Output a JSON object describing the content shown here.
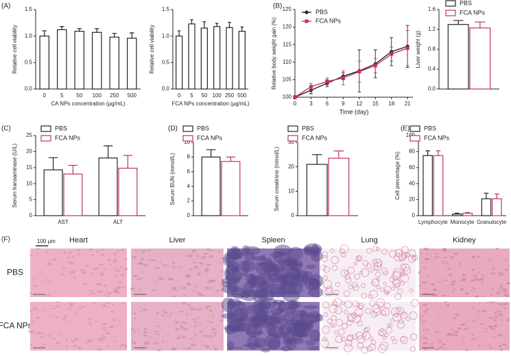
{
  "chart_data": [
    {
      "type": "bar",
      "panel": "(A)",
      "ylabel": "Relative cell viability",
      "xlabel": "CA NPs concentration (μg/mL)",
      "categories": [
        "0",
        "5",
        "50",
        "100",
        "250",
        "500"
      ],
      "series": [
        {
          "color": "#222222",
          "values": [
            1.0,
            1.12,
            1.09,
            1.07,
            0.98,
            0.96
          ],
          "errors": [
            0.1,
            0.06,
            0.05,
            0.07,
            0.07,
            0.1
          ]
        }
      ],
      "ylim": [
        0,
        1.5
      ],
      "yticks": [
        {
          "value": 0,
          "label": "0.0"
        },
        {
          "value": 0.5,
          "label": "0.5"
        },
        {
          "value": 1,
          "label": "1.0"
        },
        {
          "value": 1.5,
          "label": "1.5"
        }
      ]
    },
    {
      "type": "bar",
      "ylabel": "Relative cell viability",
      "xlabel": "FCA NPs concentration (μg/mL)",
      "categories": [
        "0",
        "5",
        "50",
        "100",
        "250",
        "500"
      ],
      "series": [
        {
          "color": "#222222",
          "values": [
            1.0,
            1.23,
            1.15,
            1.18,
            1.16,
            1.09
          ],
          "errors": [
            0.1,
            0.08,
            0.12,
            0.06,
            0.1,
            0.08
          ]
        }
      ],
      "ylim": [
        0,
        1.5
      ],
      "yticks": [
        {
          "value": 0,
          "label": "0.0"
        },
        {
          "value": 0.5,
          "label": "0.5"
        },
        {
          "value": 1,
          "label": "1.0"
        },
        {
          "value": 1.5,
          "label": "1.5"
        }
      ]
    },
    {
      "type": "line",
      "panel": "(B)",
      "ylabel": "Relative body weight gain (%)",
      "xlabel": "Time (day)",
      "x": [
        0,
        3,
        6,
        9,
        12,
        15,
        18,
        21
      ],
      "series": [
        {
          "name": "PBS",
          "color": "#222222",
          "marker": "circle",
          "values": [
            100,
            102,
            104,
            106,
            107.5,
            109.5,
            113,
            114.5
          ],
          "errors": [
            0.5,
            1,
            1,
            1,
            6,
            4,
            4,
            6
          ]
        },
        {
          "name": "FCA NPs",
          "color": "#c0306a",
          "marker": "square",
          "values": [
            100,
            103,
            104.5,
            105.5,
            107.3,
            109,
            112.3,
            114
          ],
          "errors": [
            0.5,
            1,
            1,
            2,
            3,
            2,
            2,
            5
          ]
        }
      ],
      "xlim": [
        0,
        22
      ],
      "xticks": [
        0,
        3,
        6,
        9,
        12,
        15,
        18,
        21
      ],
      "ylim": [
        100,
        125
      ],
      "yticks": [
        100,
        105,
        110,
        115,
        120,
        125
      ]
    },
    {
      "type": "bar",
      "ylabel": "Liver weight (g)",
      "series": [
        {
          "name": "PBS",
          "color": "#222222",
          "values": [
            1.3
          ],
          "errors": [
            0.08
          ]
        },
        {
          "name": "FCA NPs",
          "color": "#c0306a",
          "values": [
            1.23
          ],
          "errors": [
            0.12
          ]
        }
      ],
      "ylim": [
        0,
        1.6
      ],
      "yticks": [
        {
          "value": 0,
          "label": "0.0"
        },
        {
          "value": 0.4,
          "label": "0.4"
        },
        {
          "value": 0.8,
          "label": "0.8"
        },
        {
          "value": 1.2,
          "label": "1.2"
        },
        {
          "value": 1.6,
          "label": "1.6"
        }
      ]
    },
    {
      "type": "bar",
      "panel": "(C)",
      "ylabel": "Serum transaminase (U/L)",
      "categories": [
        "AST",
        "ALT"
      ],
      "series": [
        {
          "name": "PBS",
          "color": "#222222",
          "values": [
            14.3,
            18
          ],
          "errors": [
            3.8,
            3.8
          ]
        },
        {
          "name": "FCA NPs",
          "color": "#c0306a",
          "values": [
            13,
            14.8
          ],
          "errors": [
            2.7,
            4
          ]
        }
      ],
      "ylim": [
        0,
        25
      ],
      "yticks": [
        0,
        5,
        10,
        15,
        20,
        25
      ]
    },
    {
      "type": "bar",
      "panel": "(D)",
      "ylabel": "Serum BUN (mmol/L)",
      "series": [
        {
          "name": "PBS",
          "color": "#222222",
          "values": [
            8
          ],
          "errors": [
            1
          ]
        },
        {
          "name": "FCA NPs",
          "color": "#c0306a",
          "values": [
            7.4
          ],
          "errors": [
            0.6
          ]
        }
      ],
      "ylim": [
        0,
        10
      ],
      "yticks": [
        0,
        2,
        4,
        6,
        8,
        10
      ]
    },
    {
      "type": "bar",
      "ylabel": "Serum creatinine (mmol/L)",
      "series": [
        {
          "name": "PBS",
          "color": "#222222",
          "values": [
            21
          ],
          "errors": [
            4
          ]
        },
        {
          "name": "FCA NPs",
          "color": "#c0306a",
          "values": [
            23.5
          ],
          "errors": [
            3
          ]
        }
      ],
      "ylim": [
        0,
        30
      ],
      "yticks": [
        0,
        10,
        20,
        30
      ]
    },
    {
      "type": "bar",
      "panel": "(E)",
      "ylabel": "Cell percentage (%)",
      "categories": [
        "Lymphocyte",
        "Monocyte",
        "Granulocyte"
      ],
      "series": [
        {
          "name": "PBS",
          "color": "#222222",
          "values": [
            75,
            2,
            21
          ],
          "errors": [
            6,
            1,
            7
          ]
        },
        {
          "name": "FCA NPs",
          "color": "#c0306a",
          "values": [
            75,
            3,
            21
          ],
          "errors": [
            6,
            1,
            6
          ]
        }
      ],
      "ylim": [
        0,
        100
      ],
      "yticks": [
        0,
        20,
        40,
        60,
        80,
        100
      ]
    }
  ],
  "histology": {
    "panel": "(F)",
    "scale_bar": "100 μm",
    "columns": [
      "Heart",
      "Liver",
      "Spleen",
      "Lung",
      "Kidney"
    ],
    "rows": [
      "PBS",
      "FCA NPs"
    ]
  }
}
